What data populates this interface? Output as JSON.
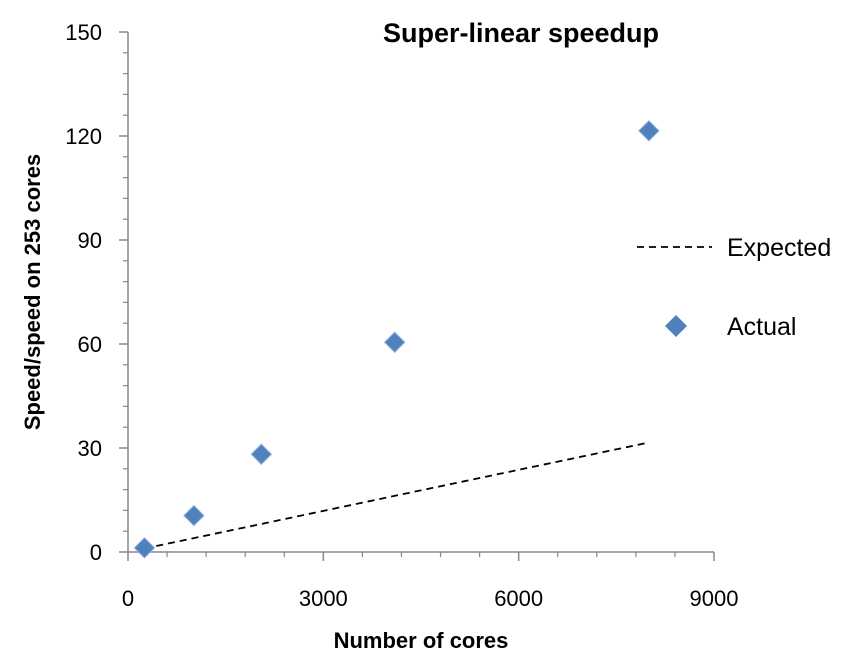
{
  "chart_data": {
    "type": "scatter",
    "title": "Super-linear speedup",
    "xlabel": "Number of cores",
    "ylabel": "Speed/speed on 253 cores",
    "xlim": [
      0,
      9000
    ],
    "ylim": [
      0,
      150
    ],
    "x_ticks": [
      0,
      3000,
      6000,
      9000
    ],
    "y_ticks": [
      0,
      30,
      60,
      90,
      120,
      150
    ],
    "x_tick_labels": [
      "0",
      "3000",
      "6000",
      "9000"
    ],
    "y_tick_labels": [
      "0",
      "30",
      "60",
      "90",
      "120",
      "150"
    ],
    "grid": false,
    "legend_position": "right",
    "series": [
      {
        "name": "Expected",
        "style": "dashed-line",
        "color": "#000000",
        "x": [
          253,
          1012,
          2024,
          4048,
          8000
        ],
        "y": [
          1,
          4,
          8,
          16,
          31.6
        ]
      },
      {
        "name": "Actual",
        "style": "diamond-marker",
        "color": "#4F81BD",
        "x": [
          253,
          1012,
          2048,
          4096,
          8000
        ],
        "y": [
          1.2,
          10.5,
          28.2,
          60.5,
          121.5
        ]
      }
    ]
  }
}
